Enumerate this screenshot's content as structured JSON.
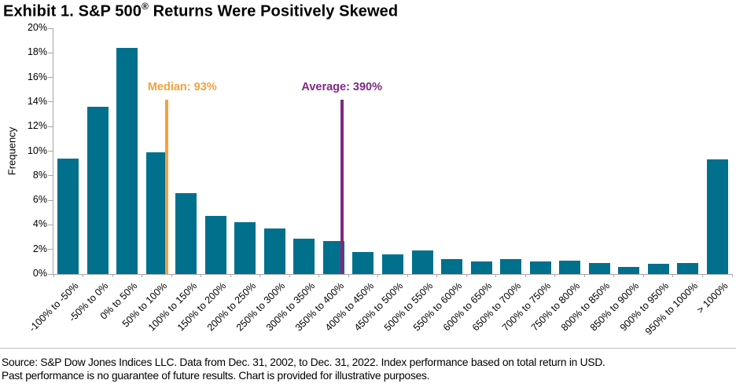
{
  "title": {
    "prefix": "Exhibit 1. S&P 500",
    "registered_mark": "®",
    "suffix": " Returns Were Positively Skewed"
  },
  "chart_data": {
    "type": "bar",
    "title": "Exhibit 1. S&P 500® Returns Were Positively Skewed",
    "xlabel": "",
    "ylabel": "Frequency",
    "ylim": [
      0,
      20
    ],
    "ytick_step": 2,
    "ytick_suffix": "%",
    "grid": false,
    "legend": "none",
    "bin_start": -100,
    "bin_width": 50,
    "colors": {
      "bar": "#00708C",
      "axis": "#A6A6A6",
      "median": "#F0A33C",
      "average": "#7D2A83"
    },
    "categories": [
      "-100% to -50%",
      "-50% to 0%",
      "0% to 50%",
      "50% to 100%",
      "100% to 150%",
      "150% to 200%",
      "200% to 250%",
      "250% to 300%",
      "300% to 350%",
      "350% to 400%",
      "400% to 450%",
      "450% to 500%",
      "500% to 550%",
      "550% to 600%",
      "600% to 650%",
      "650% to 700%",
      "700% to 750%",
      "750% to 800%",
      "800% to 850%",
      "850% to 900%",
      "900% to 950%",
      "950% to 1000%",
      "> 1000%"
    ],
    "values": [
      9.4,
      13.6,
      18.4,
      9.9,
      6.6,
      4.7,
      4.2,
      3.7,
      2.9,
      2.7,
      1.8,
      1.6,
      1.9,
      1.2,
      1.0,
      1.2,
      1.0,
      1.1,
      0.9,
      0.6,
      0.8,
      0.9,
      9.3
    ],
    "reference_lines": [
      {
        "id": "median",
        "label": "Median: 93%",
        "x_value": 93,
        "top_value": 14.2,
        "color": "#F0A33C",
        "label_anchor": "left",
        "label_dx": -24
      },
      {
        "id": "average",
        "label": "Average: 390%",
        "x_value": 390,
        "top_value": 14.2,
        "color": "#7D2A83",
        "label_anchor": "center",
        "label_dx": 0
      }
    ]
  },
  "footer": {
    "line1": "Source: S&P Dow Jones Indices LLC. Data from Dec. 31, 2002, to Dec. 31, 2022. Index performance based on total return in USD.",
    "line2": "Past performance is no guarantee of future results. Chart is provided for illustrative purposes."
  }
}
